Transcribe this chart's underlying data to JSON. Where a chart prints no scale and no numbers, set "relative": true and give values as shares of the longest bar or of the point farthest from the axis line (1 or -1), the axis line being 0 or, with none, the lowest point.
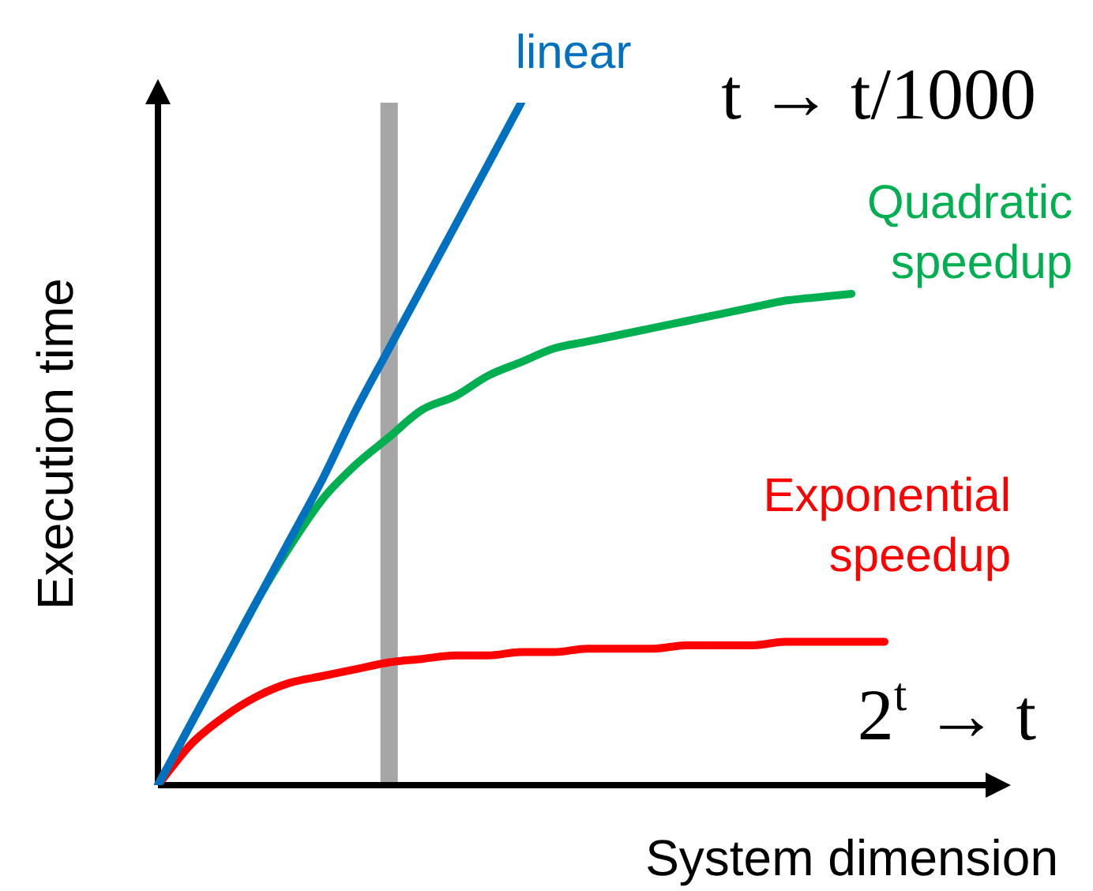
{
  "chart_data": {
    "type": "line",
    "relative": true,
    "xlabel": "System dimension",
    "ylabel": "Execution time",
    "categories": [
      null,
      null,
      null,
      null,
      null,
      null,
      null,
      null,
      null,
      null,
      null,
      null,
      null,
      null,
      null,
      null,
      null,
      null,
      null,
      null,
      null,
      null,
      null
    ],
    "series": [
      {
        "name": "linear",
        "color": "#0070c0",
        "values": [
          0,
          0.09,
          0.18,
          0.27,
          0.36,
          0.45,
          0.55,
          0.64,
          0.73,
          0.82,
          0.91,
          1,
          null,
          null,
          null,
          null,
          null,
          null,
          null,
          null,
          null,
          null,
          null
        ]
      },
      {
        "name": "Quadratic speedup",
        "color": "#00b050",
        "values": [
          0,
          0.09,
          0.18,
          0.27,
          0.35,
          0.42,
          0.47,
          0.51,
          0.55,
          0.57,
          0.6,
          0.62,
          0.64,
          0.65,
          0.66,
          0.67,
          0.68,
          0.69,
          0.7,
          0.71,
          0.715,
          0.72,
          null
        ]
      },
      {
        "name": "Exponential speedup",
        "color": "#ff0000",
        "values": [
          0,
          0.06,
          0.1,
          0.13,
          0.15,
          0.16,
          0.17,
          0.18,
          0.185,
          0.19,
          0.19,
          0.195,
          0.195,
          0.2,
          0.2,
          0.2,
          0.205,
          0.205,
          0.205,
          0.21,
          0.21,
          0.21,
          0.21
        ]
      }
    ],
    "annotations": [
      "t → t/1000",
      "2$^{t}$ → t"
    ],
    "grid": false,
    "legend": false,
    "marker": "none",
    "line_style": "solid",
    "tick_labels": false
  }
}
